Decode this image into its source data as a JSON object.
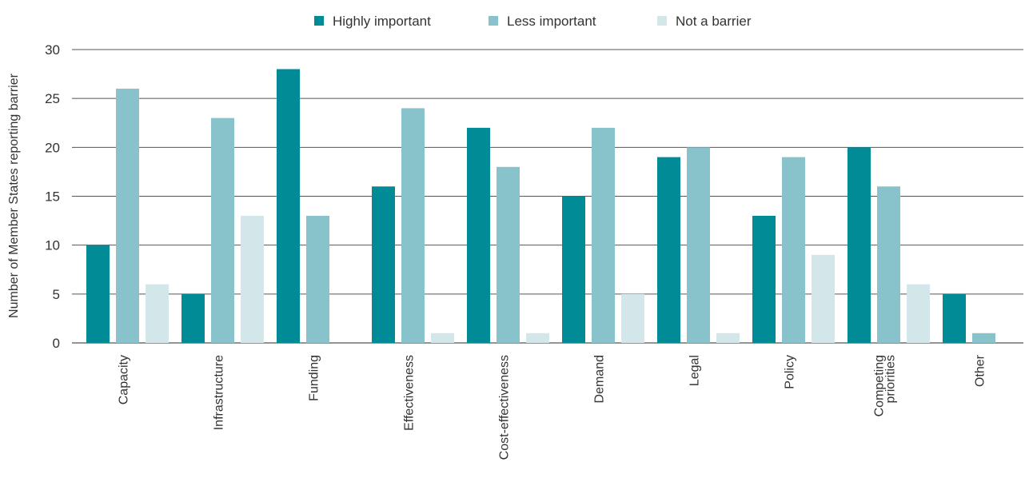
{
  "chart_data": {
    "type": "bar",
    "title": "",
    "xlabel": "",
    "ylabel": "Number of Member States reporting barrier",
    "ylim": [
      0,
      30
    ],
    "yticks": [
      0,
      5,
      10,
      15,
      20,
      25,
      30
    ],
    "grid": true,
    "legend_position": "top-center",
    "categories": [
      [
        "Capacity"
      ],
      [
        "Infrastructure"
      ],
      [
        "Funding"
      ],
      [
        "Effectiveness"
      ],
      [
        "Cost-effectiveness"
      ],
      [
        "Demand"
      ],
      [
        "Legal"
      ],
      [
        "Policy"
      ],
      [
        "Competing",
        "priorities"
      ],
      [
        "Other"
      ]
    ],
    "series": [
      {
        "name": "Highly important",
        "color": "#008b96",
        "values": [
          10,
          5,
          28,
          16,
          22,
          15,
          19,
          13,
          20,
          5
        ]
      },
      {
        "name": "Less important",
        "color": "#88c3cc",
        "values": [
          26,
          23,
          13,
          24,
          18,
          22,
          20,
          19,
          16,
          1
        ]
      },
      {
        "name": "Not a barrier",
        "color": "#d3e7ea",
        "values": [
          6,
          13,
          0,
          1,
          1,
          5,
          1,
          9,
          6,
          0
        ]
      }
    ]
  }
}
